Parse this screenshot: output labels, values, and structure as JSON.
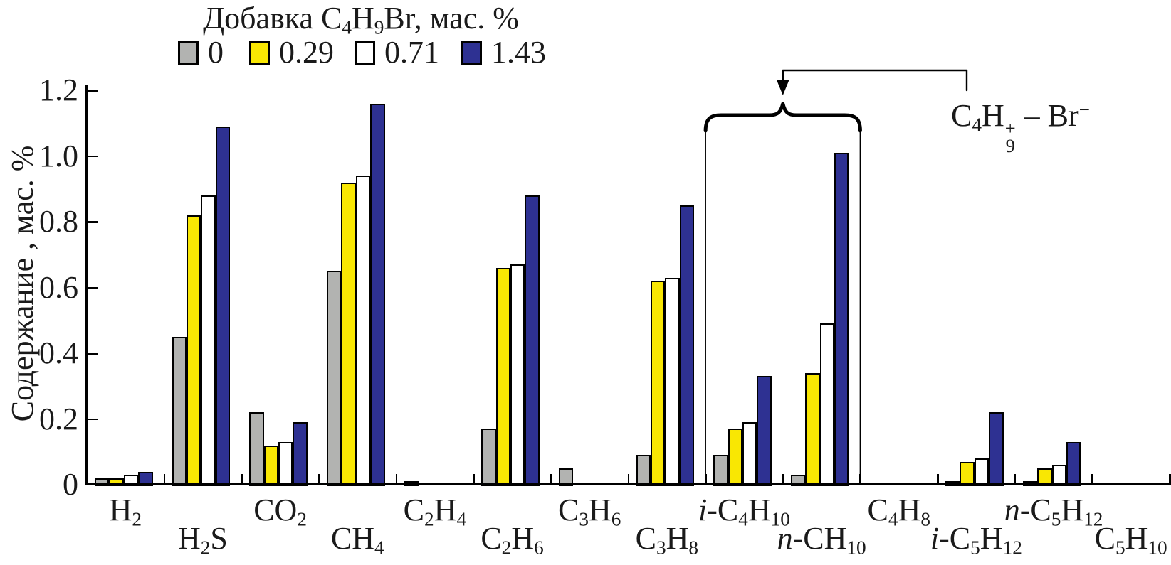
{
  "chart_data": {
    "type": "bar",
    "title": "Добавка C_4H_9Br, мас. %",
    "ylabel": "Содержание , мас. %",
    "xlabel": "",
    "ylim": [
      0,
      1.2
    ],
    "yticks": [
      "0",
      "0.2",
      "0.4",
      "0.6",
      "0.8",
      "1.0",
      "1.2"
    ],
    "grid": false,
    "legend_position": "top",
    "categories": [
      "H_2",
      "H_2S",
      "CO_2",
      "CH_4",
      "C_2H_4",
      "C_2H_6",
      "C_3H_6",
      "C_3H_8",
      "i-C_4H_10",
      "n-CH_10",
      "C_4H_8",
      "i-C_5H_12",
      "n-C_5H_12",
      "C_5H_10"
    ],
    "series": [
      {
        "name": "0",
        "color": "#b2b3b1",
        "values": [
          0.02,
          0.45,
          0.22,
          0.65,
          0.01,
          0.17,
          0.05,
          0.09,
          0.09,
          0.03,
          0,
          0.01,
          0.01,
          0
        ]
      },
      {
        "name": "0.29",
        "color": "#f9e703",
        "values": [
          0.02,
          0.82,
          0.12,
          0.92,
          0,
          0.66,
          0,
          0.62,
          0.17,
          0.34,
          0,
          0.07,
          0.05,
          0
        ]
      },
      {
        "name": "0.71",
        "color": "#ffffff",
        "values": [
          0.03,
          0.88,
          0.13,
          0.94,
          0,
          0.67,
          0,
          0.63,
          0.19,
          0.49,
          0,
          0.08,
          0.06,
          0
        ]
      },
      {
        "name": "1.43",
        "color": "#2e3192",
        "values": [
          0.04,
          1.09,
          0.19,
          1.16,
          0,
          0.88,
          0,
          0.85,
          0.33,
          1.01,
          0,
          0.22,
          0.13,
          0
        ]
      }
    ],
    "annotation": {
      "label": "C_4H_9^+ – Br^−",
      "brace_spans_categories": [
        "i-C_4H_10",
        "n-CH_10"
      ]
    }
  }
}
